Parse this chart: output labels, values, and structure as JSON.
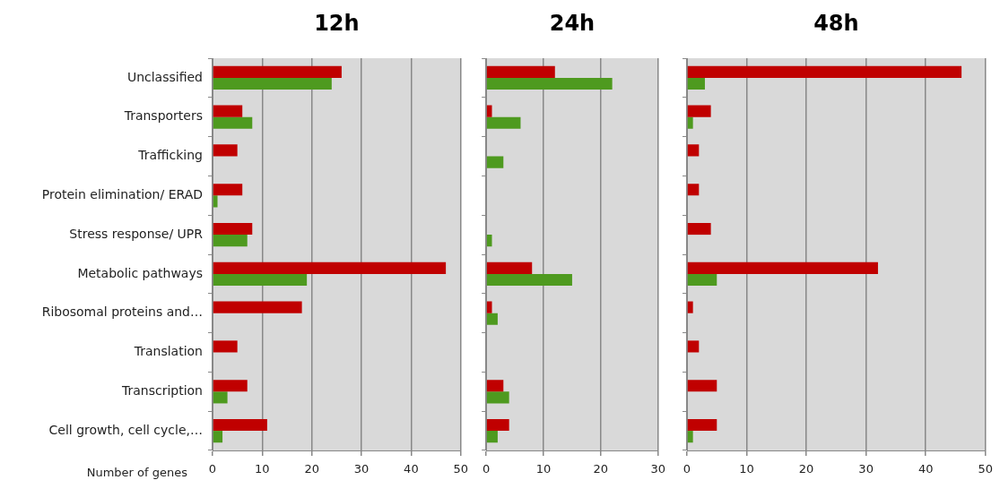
{
  "chart_data": [
    {
      "type": "bar",
      "orientation": "horizontal",
      "title": "12h",
      "xlabel": "Number of genes",
      "categories": [
        "Unclassified",
        "Transporters",
        "Trafficking",
        "Protein elimination/ ERAD",
        "Stress response/ UPR",
        "Metabolic pathways",
        "Ribosomal proteins and…",
        "Translation",
        "Transcription",
        "Cell growth, cell cycle,…"
      ],
      "series": [
        {
          "color": "#c00000",
          "values": [
            26,
            6,
            5,
            6,
            8,
            47,
            18,
            5,
            7,
            11
          ]
        },
        {
          "color": "#4e9a1f",
          "values": [
            24,
            8,
            0,
            1,
            7,
            19,
            0,
            0,
            3,
            2
          ]
        }
      ],
      "xlim": [
        0,
        50
      ],
      "xticks": [
        0,
        10,
        20,
        30,
        40,
        50
      ],
      "grid": "x",
      "legend": false
    },
    {
      "type": "bar",
      "orientation": "horizontal",
      "title": "24h",
      "categories": [
        null,
        null,
        null,
        null,
        null,
        null,
        null,
        null,
        null,
        null
      ],
      "series": [
        {
          "color": "#c00000",
          "values": [
            12,
            1,
            0,
            0,
            0,
            8,
            1,
            0,
            3,
            4
          ]
        },
        {
          "color": "#4e9a1f",
          "values": [
            22,
            6,
            3,
            0,
            1,
            15,
            2,
            0,
            4,
            2
          ]
        }
      ],
      "xlim": [
        0,
        30
      ],
      "xticks": [
        0,
        10,
        20,
        30
      ],
      "grid": "x",
      "legend": false,
      "tick_labels": "x"
    },
    {
      "type": "bar",
      "orientation": "horizontal",
      "title": "48h",
      "categories": [
        null,
        null,
        null,
        null,
        null,
        null,
        null,
        null,
        null,
        null
      ],
      "series": [
        {
          "color": "#c00000",
          "values": [
            46,
            4,
            2,
            2,
            4,
            32,
            1,
            2,
            5,
            5
          ]
        },
        {
          "color": "#4e9a1f",
          "values": [
            3,
            1,
            0,
            0,
            0,
            5,
            0,
            0,
            0,
            1
          ]
        }
      ],
      "xlim": [
        0,
        50
      ],
      "xticks": [
        0,
        10,
        20,
        30,
        40,
        50
      ],
      "grid": "x",
      "legend": false,
      "tick_labels": "x"
    }
  ]
}
